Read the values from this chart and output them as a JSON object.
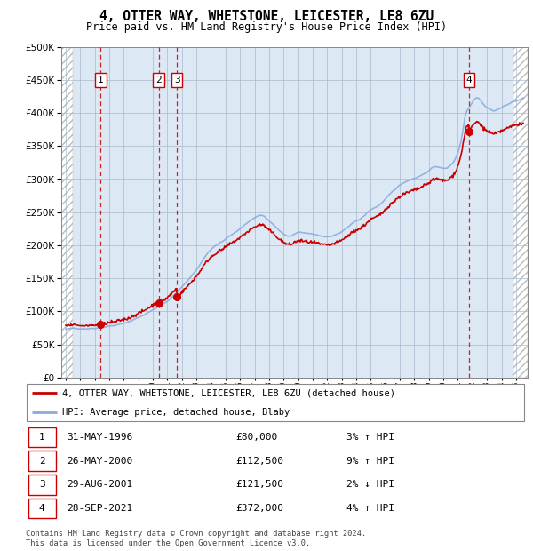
{
  "title": "4, OTTER WAY, WHETSTONE, LEICESTER, LE8 6ZU",
  "subtitle": "Price paid vs. HM Land Registry's House Price Index (HPI)",
  "xmin": 1993.7,
  "xmax": 2025.8,
  "ymin": 0,
  "ymax": 500000,
  "yticks": [
    0,
    50000,
    100000,
    150000,
    200000,
    250000,
    300000,
    350000,
    400000,
    450000,
    500000
  ],
  "plot_bg_color": "#dce9f5",
  "hpi_color": "#88aadd",
  "price_color": "#cc0000",
  "purchases": [
    {
      "date_num": 1996.413,
      "price": 80000,
      "label": "1",
      "hpi_pct": "3%",
      "hpi_dir": "↑",
      "date_str": "31-MAY-1996",
      "price_str": "£80,000"
    },
    {
      "date_num": 2000.4,
      "price": 112500,
      "label": "2",
      "hpi_pct": "9%",
      "hpi_dir": "↑",
      "date_str": "26-MAY-2000",
      "price_str": "£112,500"
    },
    {
      "date_num": 2001.66,
      "price": 121500,
      "label": "3",
      "hpi_pct": "2%",
      "hpi_dir": "↓",
      "date_str": "29-AUG-2001",
      "price_str": "£121,500"
    },
    {
      "date_num": 2021.747,
      "price": 372000,
      "label": "4",
      "hpi_pct": "4%",
      "hpi_dir": "↑",
      "date_str": "28-SEP-2021",
      "price_str": "£372,000"
    }
  ],
  "legend_label_price": "4, OTTER WAY, WHETSTONE, LEICESTER, LE8 6ZU (detached house)",
  "legend_label_hpi": "HPI: Average price, detached house, Blaby",
  "footer": "Contains HM Land Registry data © Crown copyright and database right 2024.\nThis data is licensed under the Open Government Licence v3.0.",
  "xtick_years": [
    1994,
    1995,
    1996,
    1997,
    1998,
    1999,
    2000,
    2001,
    2002,
    2003,
    2004,
    2005,
    2006,
    2007,
    2008,
    2009,
    2010,
    2011,
    2012,
    2013,
    2014,
    2015,
    2016,
    2017,
    2018,
    2019,
    2020,
    2021,
    2022,
    2023,
    2024,
    2025
  ],
  "hpi_anchors_x": [
    1994.0,
    1995.0,
    1996.0,
    1997.0,
    1998.0,
    1999.0,
    2000.0,
    2001.0,
    2002.0,
    2003.0,
    2004.0,
    2005.0,
    2006.0,
    2007.0,
    2007.5,
    2008.0,
    2008.5,
    2009.0,
    2009.5,
    2010.0,
    2010.5,
    2011.0,
    2011.5,
    2012.0,
    2012.5,
    2013.0,
    2013.5,
    2014.0,
    2014.5,
    2015.0,
    2015.5,
    2016.0,
    2016.5,
    2017.0,
    2017.5,
    2018.0,
    2018.5,
    2019.0,
    2019.5,
    2020.0,
    2020.5,
    2021.0,
    2021.3,
    2021.5,
    2021.8,
    2022.0,
    2022.3,
    2022.6,
    2022.9,
    2023.2,
    2023.5,
    2023.8,
    2024.1,
    2024.4,
    2024.7,
    2025.0,
    2025.5
  ],
  "hpi_anchors_y": [
    73000,
    74000,
    76000,
    80000,
    84000,
    93000,
    105000,
    118000,
    140000,
    165000,
    195000,
    210000,
    225000,
    242000,
    245000,
    238000,
    228000,
    218000,
    215000,
    220000,
    218000,
    216000,
    213000,
    212000,
    215000,
    220000,
    228000,
    235000,
    242000,
    252000,
    258000,
    268000,
    278000,
    288000,
    295000,
    300000,
    305000,
    312000,
    318000,
    315000,
    320000,
    340000,
    368000,
    395000,
    410000,
    418000,
    425000,
    420000,
    412000,
    408000,
    405000,
    408000,
    412000,
    415000,
    418000,
    420000,
    425000
  ]
}
